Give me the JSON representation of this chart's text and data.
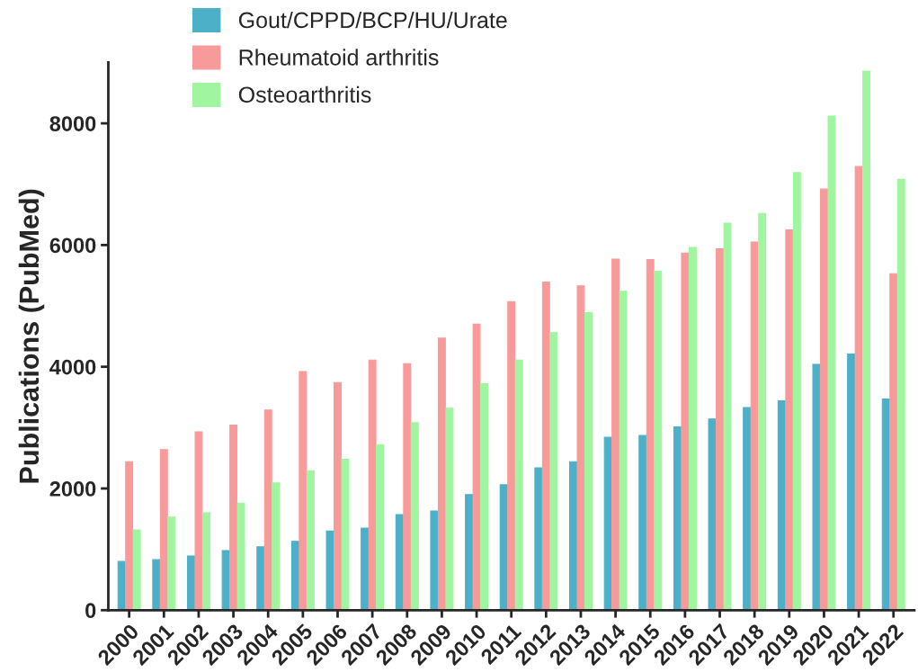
{
  "chart_data": {
    "type": "bar",
    "ylabel": "Publications (PubMed)",
    "categories": [
      "2000",
      "2001",
      "2002",
      "2003",
      "2004",
      "2005",
      "2006",
      "2007",
      "2008",
      "2009",
      "2010",
      "2011",
      "2012",
      "2013",
      "2014",
      "2015",
      "2016",
      "2017",
      "2018",
      "2019",
      "2020",
      "2021",
      "2022"
    ],
    "series": [
      {
        "name": "Gout/CPPD/BCP/HU/Urate",
        "color": "#4bb0c8",
        "values": [
          800,
          830,
          890,
          980,
          1040,
          1130,
          1300,
          1350,
          1570,
          1630,
          1900,
          2060,
          2340,
          2440,
          2840,
          2870,
          3010,
          3140,
          3330,
          3440,
          4040,
          4210,
          3470
        ]
      },
      {
        "name": "Rheumatoid arthritis",
        "color": "#f99a9a",
        "values": [
          2440,
          2640,
          2930,
          3040,
          3290,
          3920,
          3740,
          4110,
          4050,
          4470,
          4700,
          5070,
          5390,
          5330,
          5770,
          5760,
          5870,
          5940,
          6050,
          6250,
          6920,
          7290,
          5530
        ]
      },
      {
        "name": "Osteoarthritis",
        "color": "#a0f5a0",
        "values": [
          1320,
          1530,
          1600,
          1760,
          2090,
          2290,
          2480,
          2720,
          3080,
          3320,
          3720,
          4110,
          4560,
          4890,
          5240,
          5570,
          5960,
          6360,
          6520,
          7190,
          8120,
          8860,
          7080
        ]
      }
    ],
    "ylim": [
      0,
      9000
    ],
    "yticks": [
      0,
      2000,
      4000,
      6000,
      8000
    ],
    "grid": false,
    "legend": "top left"
  }
}
